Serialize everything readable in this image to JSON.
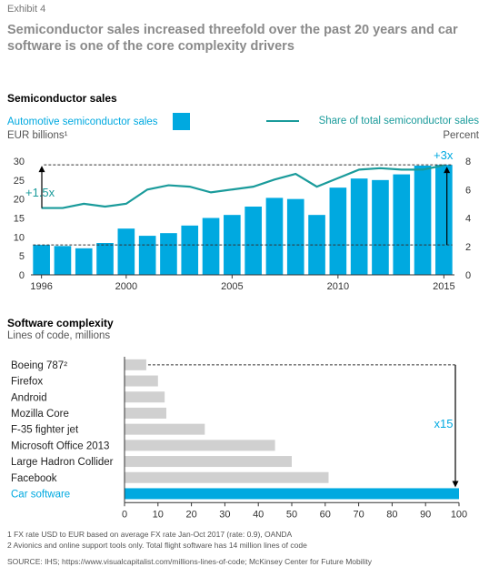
{
  "exhibit": "Exhibit 4",
  "headline": "Semiconductor sales increased threefold over the past 20 years and car software is one of the core complexity drivers",
  "chart_data": [
    {
      "type": "bar",
      "title": "Semiconductor sales",
      "legend_bar": "Automotive semiconductor sales",
      "unit_left": "EUR billions¹",
      "legend_line": "Share of total semiconductor sales",
      "unit_right": "Percent",
      "x": [
        1996,
        1997,
        1998,
        1999,
        2000,
        2001,
        2002,
        2003,
        2004,
        2005,
        2006,
        2007,
        2008,
        2009,
        2010,
        2011,
        2012,
        2013,
        2014,
        2015
      ],
      "x_tick_labels": [
        "1996",
        "2000",
        "2005",
        "2010",
        "2015"
      ],
      "series": [
        {
          "name": "Automotive semiconductor sales",
          "values": [
            7.9,
            7.6,
            7.0,
            8.4,
            12.2,
            10.3,
            11.0,
            13.0,
            15.0,
            15.8,
            18.0,
            20.3,
            20.0,
            15.8,
            23.0,
            25.4,
            25.0,
            26.5,
            28.8,
            29.0
          ]
        },
        {
          "name": "Share of total semiconductor sales",
          "values": [
            4.7,
            4.7,
            5.0,
            4.8,
            5.0,
            6.0,
            6.3,
            6.2,
            5.8,
            6.0,
            6.2,
            6.7,
            7.1,
            6.2,
            6.8,
            7.4,
            7.5,
            7.4,
            7.4,
            7.7
          ]
        }
      ],
      "ylim_left": [
        0,
        30
      ],
      "ylim_right": [
        0,
        8
      ],
      "yticks_left": [
        "0",
        "5",
        "10",
        "15",
        "20",
        "25",
        "30"
      ],
      "yticks_right": [
        "0",
        "2",
        "4",
        "6",
        "8"
      ],
      "annotation_left": "+1.5x",
      "annotation_right": "+3x"
    },
    {
      "type": "bar",
      "orientation": "horizontal",
      "title": "Software complexity",
      "unit": "Lines of code, millions",
      "categories": [
        "Boeing 787²",
        "Firefox",
        "Android",
        "Mozilla Core",
        "F-35 fighter jet",
        "Microsoft Office 2013",
        "Large Hadron Collider",
        "Facebook",
        "Car software"
      ],
      "values": [
        6.5,
        10,
        12,
        12.5,
        24,
        45,
        50,
        61,
        100
      ],
      "xlim": [
        0,
        100
      ],
      "xticks": [
        "0",
        "10",
        "20",
        "30",
        "40",
        "50",
        "60",
        "70",
        "80",
        "90",
        "100"
      ],
      "annotation": "x15"
    }
  ],
  "footnotes": [
    "1 FX rate USD to EUR based on average FX rate Jan-Oct 2017 (rate: 0.9), OANDA",
    "2 Avionics and online support tools only. Total flight software has 14 million lines of code"
  ],
  "source": "SOURCE: IHS; https://www.visualcapitalist.com/millions-lines-of-code; McKinsey Center for Future Mobility",
  "colors": {
    "accent": "#00a9e0",
    "line": "#1a9b9b",
    "grey_bar": "#d0d0d0"
  }
}
